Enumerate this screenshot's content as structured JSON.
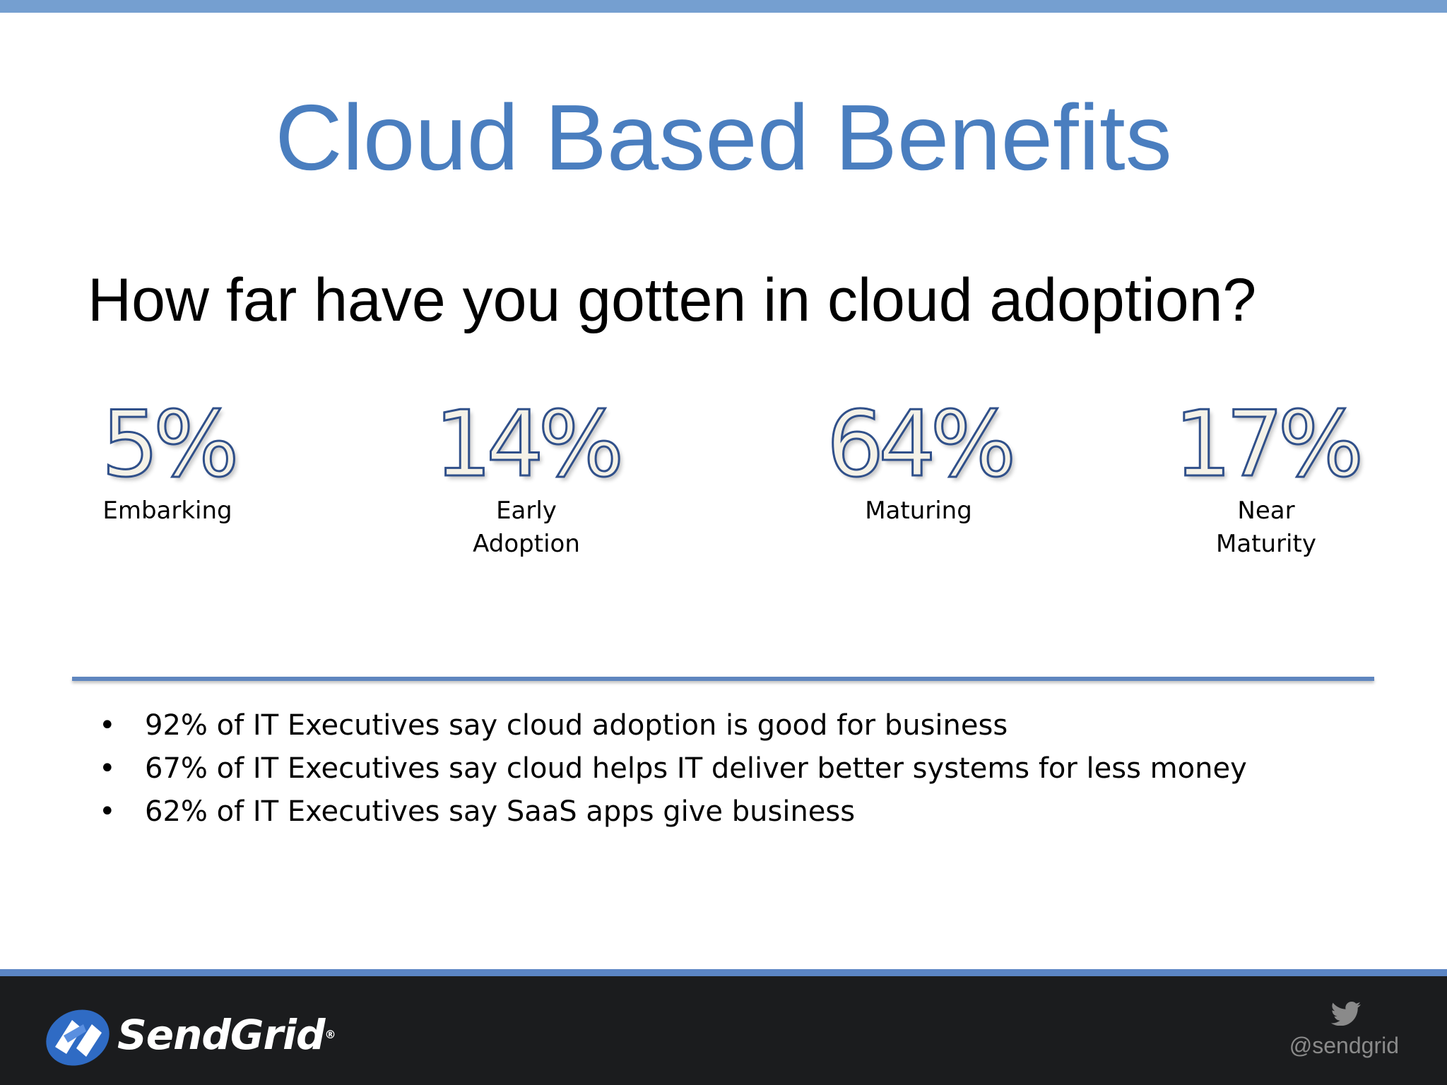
{
  "slide": {
    "title": "Cloud Based Benefits",
    "question": "How far have you gotten in cloud adoption?"
  },
  "stats": [
    {
      "value": "5%",
      "label_lines": [
        "Embarking"
      ]
    },
    {
      "value": "14%",
      "label_lines": [
        "Early",
        "Adoption"
      ]
    },
    {
      "value": "64%",
      "label_lines": [
        "Maturing"
      ]
    },
    {
      "value": "17%",
      "label_lines": [
        "Near",
        "Maturity"
      ]
    }
  ],
  "bullets": {
    "marker": "•",
    "items": [
      "92% of IT Executives say cloud adoption is good for business",
      "67% of IT Executives say cloud helps IT deliver better systems for less money",
      "62% of IT Executives say SaaS apps give business"
    ]
  },
  "footer": {
    "brand": "SendGrid",
    "brand_mark": "®",
    "twitter_handle": "@sendgrid",
    "logo_icon": "sendgrid-logo-icon",
    "social_icon": "twitter-bird-icon"
  },
  "colors": {
    "accent": "#4a7ebf",
    "top_bar": "#759fd0",
    "footer_bg": "#1b1c1e",
    "stat_outline": "#30508a"
  }
}
